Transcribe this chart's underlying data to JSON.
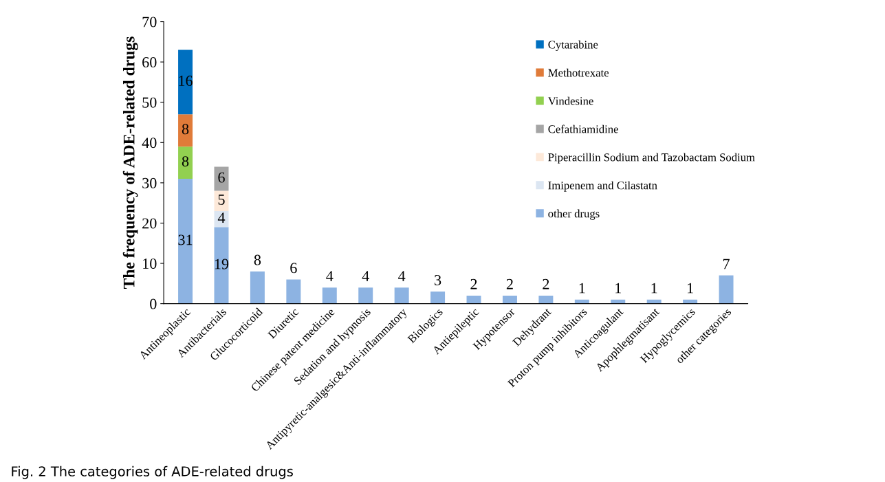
{
  "chart_data": {
    "type": "bar",
    "stacked": true,
    "ylabel": "The frequency of ADE-related drugs",
    "categories": [
      "Antineoplastic",
      "Antibacterials",
      "Glucocorticoid",
      "Diuretic",
      "Chinese patent medicine",
      "Sedation and hypnosis",
      "Antipyretic-analgesic&Anti-inflammatory",
      "Biologics",
      "Antiepileptic",
      "Hypotensor",
      "Dehydrant",
      "Proton pump inhibitors",
      "Anticoagulant",
      "Apophlegmatisant",
      "Hypoglycemics",
      "other categories"
    ],
    "series": [
      {
        "name": "other drugs",
        "color": "#8db3e2",
        "values": [
          31,
          19,
          8,
          6,
          4,
          4,
          4,
          3,
          2,
          2,
          2,
          1,
          1,
          1,
          1,
          7
        ]
      },
      {
        "name": "Imipenem and Cilastatn",
        "color": "#dce6f2",
        "values": [
          null,
          4,
          null,
          null,
          null,
          null,
          null,
          null,
          null,
          null,
          null,
          null,
          null,
          null,
          null,
          null
        ]
      },
      {
        "name": "Piperacillin Sodium and Tazobactam Sodium",
        "color": "#fde9d9",
        "values": [
          null,
          5,
          null,
          null,
          null,
          null,
          null,
          null,
          null,
          null,
          null,
          null,
          null,
          null,
          null,
          null
        ]
      },
      {
        "name": "Cefathiamidine",
        "color": "#a5a5a5",
        "values": [
          null,
          6,
          null,
          null,
          null,
          null,
          null,
          null,
          null,
          null,
          null,
          null,
          null,
          null,
          null,
          null
        ]
      },
      {
        "name": "Vindesine",
        "color": "#92d050",
        "values": [
          8,
          null,
          null,
          null,
          null,
          null,
          null,
          null,
          null,
          null,
          null,
          null,
          null,
          null,
          null,
          null
        ]
      },
      {
        "name": "Methotrexate",
        "color": "#e07b39",
        "values": [
          8,
          null,
          null,
          null,
          null,
          null,
          null,
          null,
          null,
          null,
          null,
          null,
          null,
          null,
          null,
          null
        ]
      },
      {
        "name": "Cytarabine",
        "color": "#0070c0",
        "values": [
          16,
          null,
          null,
          null,
          null,
          null,
          null,
          null,
          null,
          null,
          null,
          null,
          null,
          null,
          null,
          null
        ]
      }
    ],
    "ylim": [
      0,
      70
    ],
    "yticks": [
      0,
      10,
      20,
      30,
      40,
      50,
      60,
      70
    ],
    "data_labels": true,
    "legend": "top right",
    "grid": false,
    "annotations": [
      "Fig. 2 The categories of ADE-related drugs"
    ]
  }
}
